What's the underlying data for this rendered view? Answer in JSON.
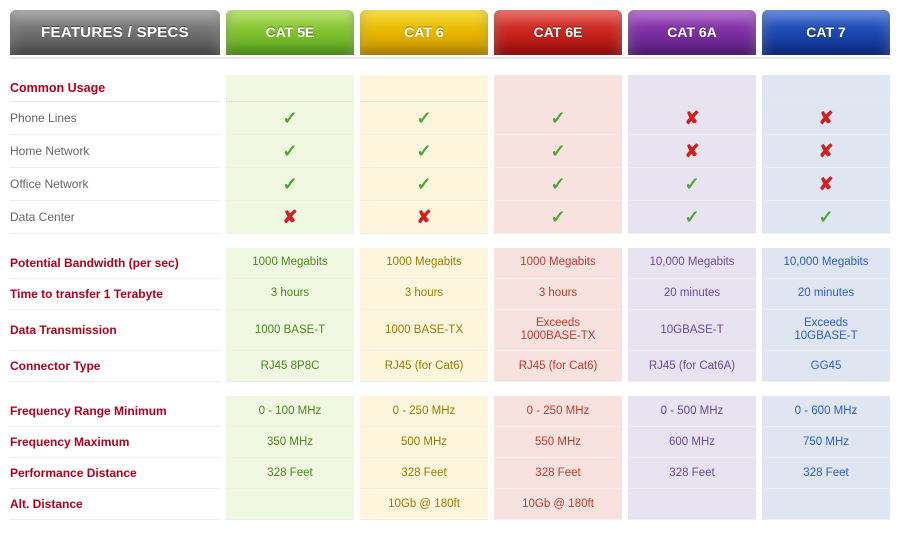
{
  "columns": [
    {
      "key": "feat",
      "label": "FEATURES / SPECS",
      "header_bg": "linear-gradient(#8a8a8a,#555555)",
      "tint": "#ffffff",
      "text": "#555555"
    },
    {
      "key": "c5e",
      "label": "CAT 5E",
      "header_bg": "linear-gradient(#a4d93e,#5ca81f)",
      "tint": "#f1f8e1",
      "text": "#4a8a1f"
    },
    {
      "key": "c6",
      "label": "CAT 6",
      "header_bg": "linear-gradient(#f6d100,#d39a00)",
      "tint": "#fdf6dc",
      "text": "#9c7a00"
    },
    {
      "key": "c6e",
      "label": "CAT 6E",
      "header_bg": "linear-gradient(#e33a2e,#aa0f0e)",
      "tint": "#f8e2df",
      "text": "#c23a2e"
    },
    {
      "key": "c6a",
      "label": "CAT 6A",
      "header_bg": "linear-gradient(#9a3fbb,#5d1f86)",
      "tint": "#e8e3f0",
      "text": "#6a4a9c"
    },
    {
      "key": "c7",
      "label": "CAT 7",
      "header_bg": "linear-gradient(#2c5fce,#0e2f8f)",
      "tint": "#e0e5f2",
      "text": "#2c5fce"
    }
  ],
  "sections": [
    {
      "title": "Common Usage",
      "rows": [
        {
          "label": "Phone Lines",
          "cells": [
            "check",
            "check",
            "check",
            "cross",
            "cross"
          ]
        },
        {
          "label": "Home Network",
          "cells": [
            "check",
            "check",
            "check",
            "cross",
            "cross"
          ]
        },
        {
          "label": "Office Network",
          "cells": [
            "check",
            "check",
            "check",
            "check",
            "cross"
          ]
        },
        {
          "label": "Data Center",
          "cells": [
            "cross",
            "cross",
            "check",
            "check",
            "check"
          ]
        }
      ]
    },
    {
      "rows": [
        {
          "label": "Potential Bandwidth (per sec)",
          "strong": true,
          "cells": [
            "1000 Megabits",
            "1000 Megabits",
            "1000 Megabits",
            "10,000 Megabits",
            "10,000 Megabits"
          ]
        },
        {
          "label": "Time to transfer 1 Terabyte",
          "strong": true,
          "cells": [
            "3 hours",
            "3 hours",
            "3 hours",
            "20 minutes",
            "20 minutes"
          ]
        },
        {
          "label": "Data Transmission",
          "strong": true,
          "cells": [
            "1000 BASE-T",
            "1000 BASE-TX",
            "Exceeds\n1000BASE-TX",
            "10GBASE-T",
            "Exceeds\n10GBASE-T"
          ]
        },
        {
          "label": "Connector Type",
          "strong": true,
          "cells": [
            "RJ45 8P8C",
            "RJ45 (for Cat6)",
            "RJ45 (for Cat6)",
            "RJ45 (for Cat6A)",
            "GG45"
          ]
        }
      ]
    },
    {
      "rows": [
        {
          "label": "Frequency Range Minimum",
          "strong": true,
          "cells": [
            "0 - 100 MHz",
            "0 - 250 MHz",
            "0 - 250 MHz",
            "0 - 500 MHz",
            "0 - 600 MHz"
          ]
        },
        {
          "label": "Frequency Maximum",
          "strong": true,
          "cells": [
            "350 MHz",
            "500 MHz",
            "550 MHz",
            "600 MHz",
            "750 MHz"
          ]
        },
        {
          "label": "Performance Distance",
          "strong": true,
          "cells": [
            "328 Feet",
            "328 Feet",
            "328 Feet",
            "328 Feet",
            "328 Feet"
          ]
        },
        {
          "label": "Alt. Distance",
          "strong": true,
          "cells": [
            "",
            "10Gb @ 180ft",
            "10Gb @ 180ft",
            "",
            ""
          ]
        }
      ]
    }
  ]
}
